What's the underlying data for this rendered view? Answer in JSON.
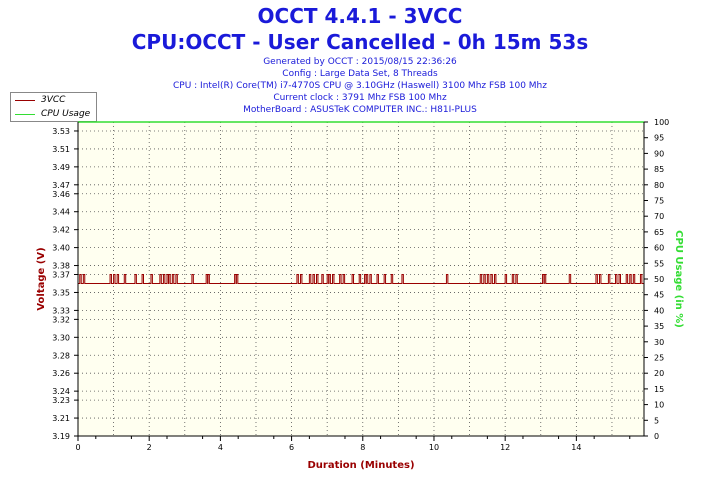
{
  "header": {
    "title": "OCCT 4.4.1 - 3VCC",
    "subtitle": "CPU:OCCT - User Cancelled - 0h 15m 53s",
    "info_lines": [
      "Generated by OCCT : 2015/08/15 22:36:26",
      "Config : Large Data Set, 8 Threads",
      "CPU : Intel(R) Core(TM) i7-4770S CPU @ 3.10GHz (Haswell) 3100 Mhz FSB 100 Mhz",
      "Current clock : 3791 Mhz FSB 100 Mhz",
      "MotherBoard : ASUSTeK COMPUTER INC.: H81I-PLUS"
    ]
  },
  "colors": {
    "voltage": "#990000",
    "cpu": "#33dd33",
    "title": "#1a1ad9",
    "plot_bg": "#fffff0",
    "grid": "#555555"
  },
  "chart_data": {
    "type": "line",
    "xlabel": "Duration (Minutes)",
    "ylabel": "Voltage (V)",
    "y2label": "CPU Usage (in %)",
    "xlim": [
      0,
      15.9
    ],
    "ylim": [
      3.19,
      3.54
    ],
    "y2lim": [
      0,
      100
    ],
    "xticks": [
      0,
      2,
      4,
      6,
      8,
      10,
      12,
      14
    ],
    "yticks": [
      "3.19",
      "3.21",
      "3.23",
      "3.24",
      "3.26",
      "3.28",
      "3.30",
      "3.32",
      "3.33",
      "3.35",
      "3.37",
      "3.38",
      "3.40",
      "3.42",
      "3.44",
      "3.46",
      "3.47",
      "3.49",
      "3.51",
      "3.53"
    ],
    "y2ticks": [
      0,
      5,
      10,
      15,
      20,
      25,
      30,
      35,
      40,
      45,
      50,
      55,
      60,
      65,
      70,
      75,
      80,
      85,
      90,
      95,
      100
    ],
    "grid": true,
    "legend_position": "top-left",
    "series": [
      {
        "name": "3VCC",
        "axis": "left",
        "baseline": 3.36,
        "spike_value": 3.37,
        "spikes_x": [
          0.05,
          0.15,
          0.9,
          1.0,
          1.1,
          1.3,
          1.6,
          1.8,
          2.05,
          2.3,
          2.4,
          2.5,
          2.55,
          2.65,
          2.75,
          3.2,
          3.6,
          3.65,
          4.4,
          4.45,
          6.15,
          6.25,
          6.5,
          6.6,
          6.7,
          6.85,
          7.0,
          7.05,
          7.15,
          7.35,
          7.45,
          7.7,
          7.9,
          8.05,
          8.1,
          8.2,
          8.4,
          8.6,
          8.8,
          9.1,
          10.35,
          11.3,
          11.4,
          11.5,
          11.6,
          11.7,
          12.0,
          12.2,
          12.3,
          13.05,
          13.1,
          13.8,
          14.55,
          14.65,
          14.9,
          15.1,
          15.2,
          15.4,
          15.5,
          15.6,
          15.8
        ]
      },
      {
        "name": "CPU Usage",
        "axis": "right",
        "x": [
          0,
          15.9
        ],
        "values": [
          100,
          100
        ]
      }
    ]
  }
}
